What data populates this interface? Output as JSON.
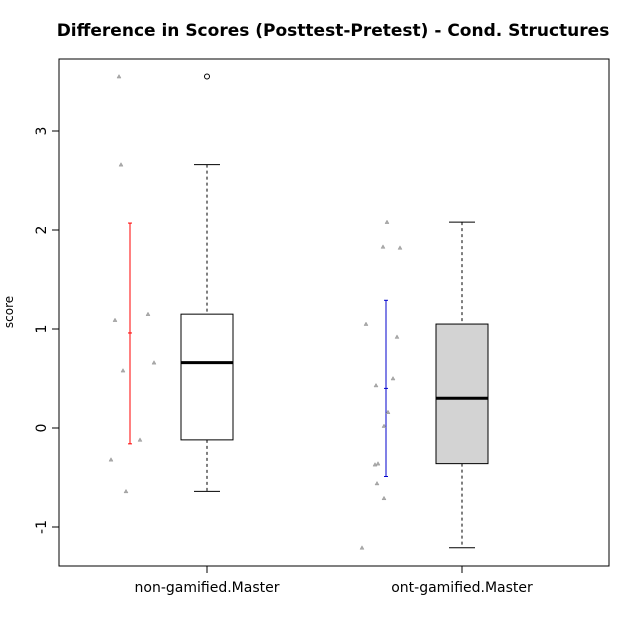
{
  "chart_data": {
    "type": "boxplot",
    "title": "Difference in Scores (Posttest-Pretest) - Cond. Structures",
    "ylabel": "score",
    "xlabel": "",
    "ylim": [
      -1.4,
      3.7
    ],
    "yticks": [
      -1,
      0,
      1,
      2,
      3
    ],
    "ytick_labels": [
      "-1",
      "0",
      "1",
      "2",
      "3"
    ],
    "grid": false,
    "legend": "none",
    "categories": [
      "non-gamified.Master",
      "ont-gamified.Master"
    ],
    "boxes": [
      {
        "name": "non-gamified.Master",
        "fill": "#ffffff",
        "whisker_low": -0.64,
        "q1": -0.12,
        "median": 0.66,
        "q3": 1.15,
        "whisker_high": 2.66,
        "outliers": [
          3.55
        ]
      },
      {
        "name": "ont-gamified.Master",
        "fill": "#d3d3d3",
        "whisker_low": -1.21,
        "q1": -0.36,
        "median": 0.3,
        "q3": 1.05,
        "whisker_high": 2.08,
        "outliers": []
      }
    ],
    "error_bars": [
      {
        "group": "non-gamified.Master",
        "color": "#ff0000",
        "low": -0.16,
        "mean": 0.96,
        "high": 2.07
      },
      {
        "group": "ont-gamified.Master",
        "color": "#0000cd",
        "low": -0.49,
        "mean": 0.4,
        "high": 1.29
      }
    ],
    "jitter_points": [
      {
        "group": "non-gamified.Master",
        "values": [
          3.55,
          2.66,
          1.15,
          1.09,
          0.66,
          0.58,
          -0.12,
          -0.32,
          -0.64
        ],
        "offsets": [
          -0.88,
          -0.86,
          -0.59,
          -0.92,
          -0.53,
          -0.84,
          -0.67,
          -0.96,
          -0.81
        ]
      },
      {
        "group": "ont-gamified.Master",
        "values": [
          2.08,
          1.83,
          1.82,
          1.05,
          0.92,
          0.5,
          0.43,
          0.16,
          0.02,
          -0.36,
          -0.37,
          -0.56,
          -0.71,
          -1.21
        ],
        "offsets": [
          -0.75,
          -0.79,
          -0.62,
          -0.96,
          -0.65,
          -0.69,
          -0.86,
          -0.74,
          -0.78,
          -0.84,
          -0.87,
          -0.85,
          -0.78,
          -1.0
        ]
      }
    ],
    "colors": {
      "jitter": "#aaaaaa",
      "median": "#000000",
      "axis": "#000000"
    }
  }
}
